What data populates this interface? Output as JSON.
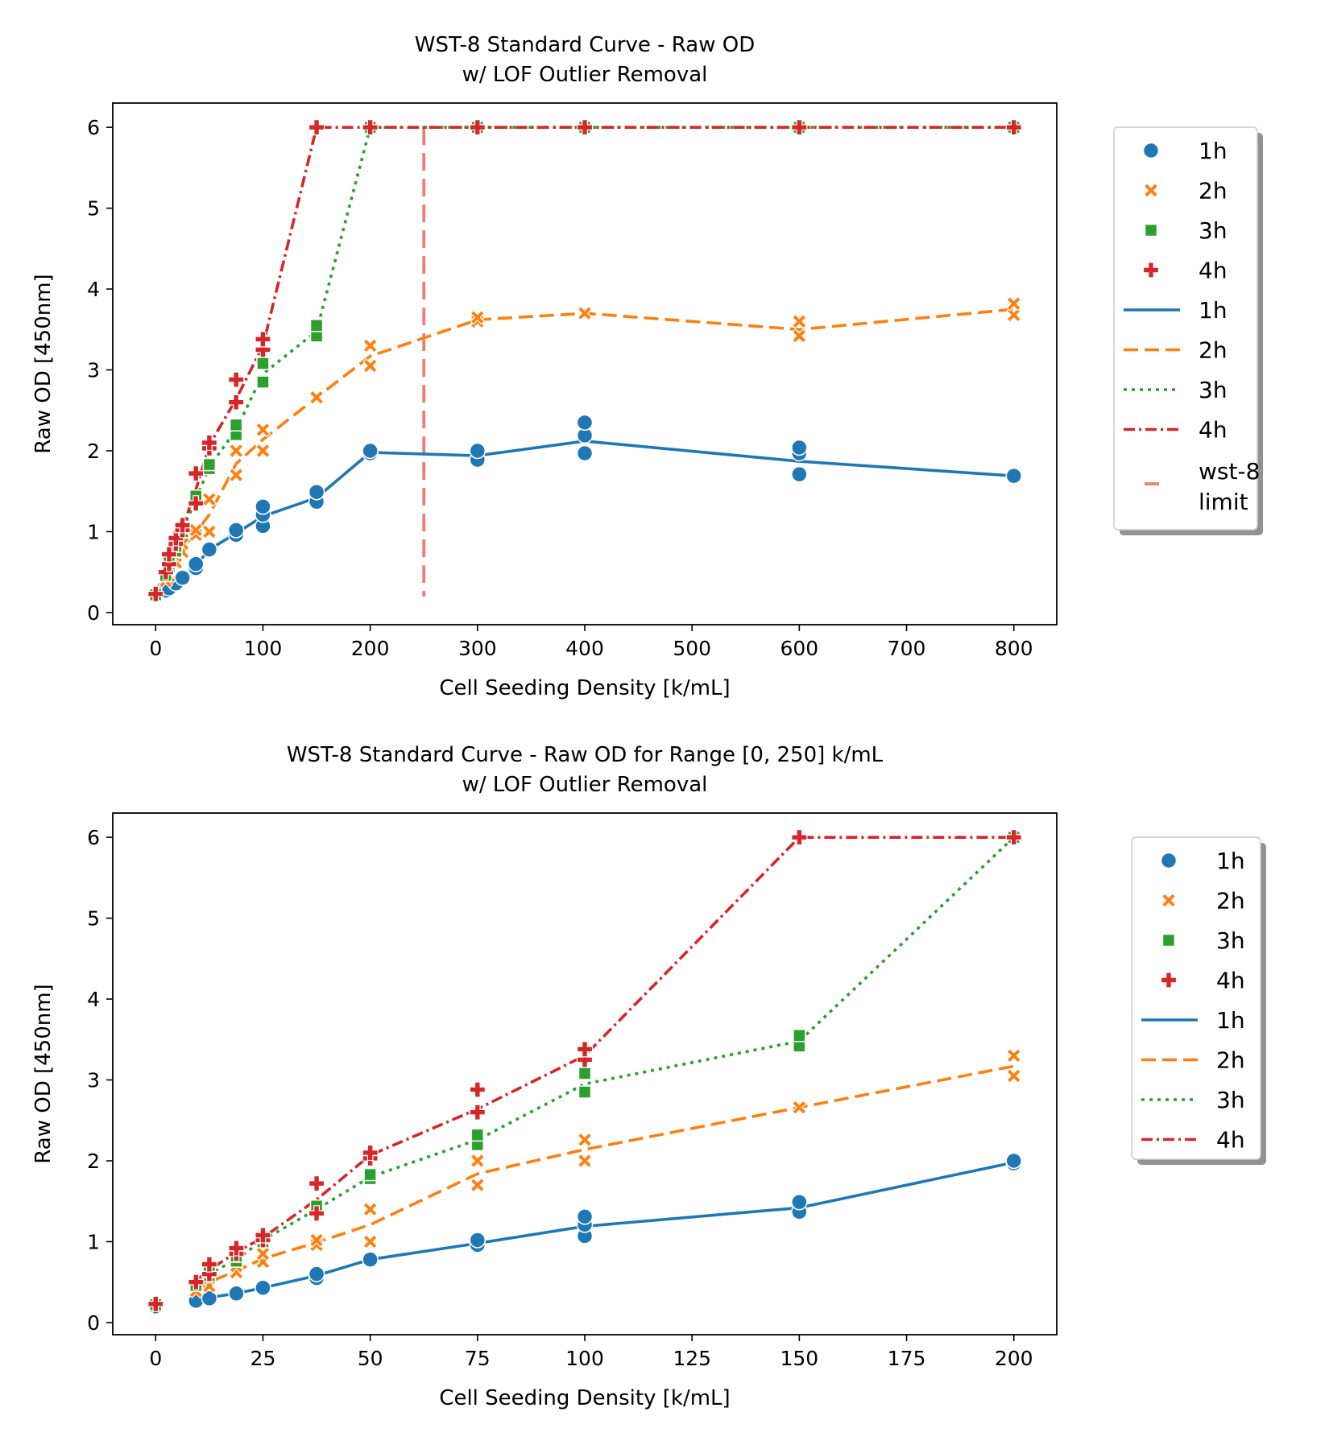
{
  "chart_data": [
    {
      "type": "line",
      "title": "WST-8 Standard Curve - Raw OD",
      "subtitle": "w/ LOF Outlier Removal",
      "xlabel": "Cell Seeding Density [k/mL]",
      "ylabel": "Raw OD [450nm]",
      "xlim": [
        -40,
        840
      ],
      "ylim": [
        -0.15,
        6.3
      ],
      "xticks": [
        0,
        100,
        200,
        300,
        400,
        500,
        600,
        700,
        800
      ],
      "yticks": [
        0,
        1,
        2,
        3,
        4,
        5,
        6
      ],
      "grid": false,
      "legend_position": "outside-right",
      "marker_legend": [
        "1h",
        "2h",
        "3h",
        "4h"
      ],
      "line_legend": [
        "1h",
        "2h",
        "3h",
        "4h"
      ],
      "vline": {
        "x": 250,
        "label": "wst-8\nlimit",
        "color": "#f07c74"
      },
      "series": [
        {
          "name": "1h",
          "color": "#1f77b4",
          "marker": "circle",
          "dash": "solid",
          "x": [
            0,
            9.4,
            12.5,
            18.8,
            25,
            37.5,
            50,
            75,
            100,
            150,
            200,
            300,
            400,
            600,
            800
          ],
          "y": [
            0.22,
            0.27,
            0.31,
            0.36,
            0.43,
            0.58,
            0.78,
            0.98,
            1.19,
            1.42,
            1.98,
            1.94,
            2.12,
            1.87,
            1.69
          ],
          "points": [
            [
              0,
              0.22
            ],
            [
              9.4,
              0.27
            ],
            [
              12.5,
              0.3
            ],
            [
              18.8,
              0.36
            ],
            [
              25,
              0.43
            ],
            [
              37.5,
              0.55
            ],
            [
              37.5,
              0.6
            ],
            [
              50,
              0.78
            ],
            [
              75,
              0.96
            ],
            [
              75,
              1.02
            ],
            [
              100,
              1.07
            ],
            [
              100,
              1.21
            ],
            [
              100,
              1.31
            ],
            [
              150,
              1.37
            ],
            [
              150,
              1.49
            ],
            [
              200,
              1.97
            ],
            [
              200,
              2.0
            ],
            [
              300,
              1.89
            ],
            [
              300,
              2.0
            ],
            [
              400,
              1.97
            ],
            [
              400,
              2.19
            ],
            [
              400,
              2.35
            ],
            [
              600,
              1.71
            ],
            [
              600,
              1.97
            ],
            [
              600,
              2.04
            ],
            [
              800,
              1.69
            ]
          ]
        },
        {
          "name": "2h",
          "color": "#ff7f0e",
          "marker": "x",
          "dash": "18,8",
          "x": [
            0,
            9.4,
            12.5,
            18.8,
            25,
            37.5,
            50,
            75,
            100,
            150,
            200,
            300,
            400,
            600,
            800
          ],
          "y": [
            0.21,
            0.39,
            0.5,
            0.64,
            0.79,
            0.99,
            1.21,
            1.84,
            2.14,
            2.66,
            3.17,
            3.62,
            3.7,
            3.5,
            3.75
          ],
          "points": [
            [
              0,
              0.21
            ],
            [
              9.4,
              0.39
            ],
            [
              12.5,
              0.45
            ],
            [
              12.5,
              0.55
            ],
            [
              18.8,
              0.62
            ],
            [
              18.8,
              0.7
            ],
            [
              25,
              0.75
            ],
            [
              25,
              0.85
            ],
            [
              37.5,
              0.96
            ],
            [
              37.5,
              1.02
            ],
            [
              50,
              1.0
            ],
            [
              50,
              1.4
            ],
            [
              75,
              1.7
            ],
            [
              75,
              2.0
            ],
            [
              100,
              2.0
            ],
            [
              100,
              2.26
            ],
            [
              150,
              2.66
            ],
            [
              200,
              3.05
            ],
            [
              200,
              3.3
            ],
            [
              300,
              3.6
            ],
            [
              300,
              3.65
            ],
            [
              400,
              3.7
            ],
            [
              600,
              3.42
            ],
            [
              600,
              3.6
            ],
            [
              800,
              3.68
            ],
            [
              800,
              3.82
            ]
          ]
        },
        {
          "name": "3h",
          "color": "#2ca02c",
          "marker": "square",
          "dash": "4,6",
          "x": [
            0,
            9.4,
            12.5,
            18.8,
            25,
            37.5,
            50,
            75,
            100,
            150,
            200,
            300,
            400,
            600,
            800
          ],
          "y": [
            0.22,
            0.46,
            0.6,
            0.78,
            1.02,
            1.4,
            1.8,
            2.26,
            2.95,
            3.48,
            6.0,
            6.0,
            6.0,
            6.0,
            6.0
          ],
          "points": [
            [
              0,
              0.22
            ],
            [
              9.4,
              0.46
            ],
            [
              12.5,
              0.58
            ],
            [
              12.5,
              0.63
            ],
            [
              18.8,
              0.76
            ],
            [
              18.8,
              0.82
            ],
            [
              25,
              1.0
            ],
            [
              25,
              1.05
            ],
            [
              37.5,
              1.38
            ],
            [
              37.5,
              1.44
            ],
            [
              50,
              1.78
            ],
            [
              50,
              1.83
            ],
            [
              75,
              2.2
            ],
            [
              75,
              2.32
            ],
            [
              100,
              2.85
            ],
            [
              100,
              3.08
            ],
            [
              150,
              3.42
            ],
            [
              150,
              3.55
            ],
            [
              200,
              6.0
            ],
            [
              300,
              6.0
            ],
            [
              400,
              6.0
            ],
            [
              600,
              6.0
            ],
            [
              800,
              6.0
            ]
          ]
        },
        {
          "name": "4h",
          "color": "#d62728",
          "marker": "plus",
          "dash": "14,5,3,5",
          "x": [
            0,
            9.4,
            12.5,
            18.8,
            25,
            37.5,
            50,
            75,
            100,
            150,
            200,
            300,
            400,
            600,
            800
          ],
          "y": [
            0.23,
            0.52,
            0.65,
            0.87,
            1.05,
            1.52,
            2.07,
            2.64,
            3.3,
            6.0,
            6.0,
            6.0,
            6.0,
            6.0,
            6.0
          ],
          "points": [
            [
              0,
              0.23
            ],
            [
              9.4,
              0.5
            ],
            [
              12.5,
              0.6
            ],
            [
              12.5,
              0.72
            ],
            [
              18.8,
              0.85
            ],
            [
              18.8,
              0.92
            ],
            [
              25,
              1.02
            ],
            [
              25,
              1.08
            ],
            [
              37.5,
              1.35
            ],
            [
              37.5,
              1.72
            ],
            [
              50,
              2.03
            ],
            [
              50,
              2.1
            ],
            [
              75,
              2.6
            ],
            [
              75,
              2.88
            ],
            [
              100,
              3.25
            ],
            [
              100,
              3.38
            ],
            [
              150,
              6.0
            ],
            [
              200,
              6.0
            ],
            [
              300,
              6.0
            ],
            [
              400,
              6.0
            ],
            [
              600,
              6.0
            ],
            [
              800,
              6.0
            ]
          ]
        }
      ]
    },
    {
      "type": "line",
      "title": "WST-8 Standard Curve - Raw OD for Range [0, 250] k/mL",
      "subtitle": "w/ LOF Outlier Removal",
      "xlabel": "Cell Seeding Density [k/mL]",
      "ylabel": "Raw OD [450nm]",
      "xlim": [
        -10,
        210
      ],
      "ylim": [
        -0.15,
        6.3
      ],
      "xticks": [
        0,
        25,
        50,
        75,
        100,
        125,
        150,
        175,
        200
      ],
      "yticks": [
        0,
        1,
        2,
        3,
        4,
        5,
        6
      ],
      "grid": false,
      "legend_position": "outside-right",
      "marker_legend": [
        "1h",
        "2h",
        "3h",
        "4h"
      ],
      "line_legend": [
        "1h",
        "2h",
        "3h",
        "4h"
      ],
      "series": [
        {
          "name": "1h",
          "color": "#1f77b4",
          "marker": "circle",
          "dash": "solid",
          "x": [
            9.4,
            12.5,
            18.8,
            25,
            37.5,
            50,
            75,
            100,
            150,
            200
          ],
          "y": [
            0.27,
            0.31,
            0.36,
            0.43,
            0.58,
            0.78,
            0.98,
            1.19,
            1.42,
            1.98
          ],
          "points": [
            [
              0,
              0.2
            ],
            [
              9.4,
              0.27
            ],
            [
              12.5,
              0.3
            ],
            [
              18.8,
              0.36
            ],
            [
              25,
              0.43
            ],
            [
              37.5,
              0.55
            ],
            [
              37.5,
              0.6
            ],
            [
              50,
              0.78
            ],
            [
              75,
              0.96
            ],
            [
              75,
              1.02
            ],
            [
              100,
              1.07
            ],
            [
              100,
              1.21
            ],
            [
              100,
              1.31
            ],
            [
              150,
              1.37
            ],
            [
              150,
              1.49
            ],
            [
              200,
              1.97
            ],
            [
              200,
              2.0
            ]
          ]
        },
        {
          "name": "2h",
          "color": "#ff7f0e",
          "marker": "x",
          "dash": "18,8",
          "x": [
            9.4,
            12.5,
            18.8,
            25,
            37.5,
            50,
            75,
            100,
            150,
            200
          ],
          "y": [
            0.39,
            0.5,
            0.64,
            0.79,
            0.99,
            1.21,
            1.84,
            2.14,
            2.66,
            3.17
          ],
          "points": [
            [
              0,
              0.2
            ],
            [
              9.4,
              0.39
            ],
            [
              12.5,
              0.45
            ],
            [
              12.5,
              0.55
            ],
            [
              18.8,
              0.62
            ],
            [
              18.8,
              0.7
            ],
            [
              25,
              0.75
            ],
            [
              25,
              0.85
            ],
            [
              37.5,
              0.96
            ],
            [
              37.5,
              1.02
            ],
            [
              50,
              1.0
            ],
            [
              50,
              1.4
            ],
            [
              75,
              1.7
            ],
            [
              75,
              2.0
            ],
            [
              100,
              2.0
            ],
            [
              100,
              2.26
            ],
            [
              150,
              2.66
            ],
            [
              200,
              3.05
            ],
            [
              200,
              3.3
            ]
          ]
        },
        {
          "name": "3h",
          "color": "#2ca02c",
          "marker": "square",
          "dash": "4,6",
          "x": [
            9.4,
            12.5,
            18.8,
            25,
            37.5,
            50,
            75,
            100,
            150,
            200
          ],
          "y": [
            0.46,
            0.6,
            0.78,
            1.02,
            1.4,
            1.8,
            2.26,
            2.95,
            3.48,
            6.0
          ],
          "points": [
            [
              0,
              0.22
            ],
            [
              9.4,
              0.46
            ],
            [
              12.5,
              0.58
            ],
            [
              12.5,
              0.63
            ],
            [
              18.8,
              0.76
            ],
            [
              18.8,
              0.82
            ],
            [
              25,
              1.0
            ],
            [
              25,
              1.05
            ],
            [
              37.5,
              1.38
            ],
            [
              37.5,
              1.44
            ],
            [
              50,
              1.78
            ],
            [
              50,
              1.83
            ],
            [
              75,
              2.2
            ],
            [
              75,
              2.32
            ],
            [
              100,
              2.85
            ],
            [
              100,
              3.08
            ],
            [
              150,
              3.42
            ],
            [
              150,
              3.55
            ],
            [
              200,
              6.0
            ]
          ]
        },
        {
          "name": "4h",
          "color": "#d62728",
          "marker": "plus",
          "dash": "14,5,3,5",
          "x": [
            9.4,
            12.5,
            18.8,
            25,
            37.5,
            50,
            75,
            100,
            150,
            200
          ],
          "y": [
            0.52,
            0.65,
            0.87,
            1.05,
            1.52,
            2.07,
            2.64,
            3.3,
            6.0,
            6.0
          ],
          "points": [
            [
              0,
              0.23
            ],
            [
              9.4,
              0.5
            ],
            [
              12.5,
              0.6
            ],
            [
              12.5,
              0.72
            ],
            [
              18.8,
              0.85
            ],
            [
              18.8,
              0.92
            ],
            [
              25,
              1.02
            ],
            [
              25,
              1.08
            ],
            [
              37.5,
              1.35
            ],
            [
              37.5,
              1.72
            ],
            [
              50,
              2.03
            ],
            [
              50,
              2.1
            ],
            [
              75,
              2.6
            ],
            [
              75,
              2.88
            ],
            [
              100,
              3.25
            ],
            [
              100,
              3.38
            ],
            [
              150,
              6.0
            ],
            [
              200,
              6.0
            ]
          ]
        }
      ]
    }
  ]
}
